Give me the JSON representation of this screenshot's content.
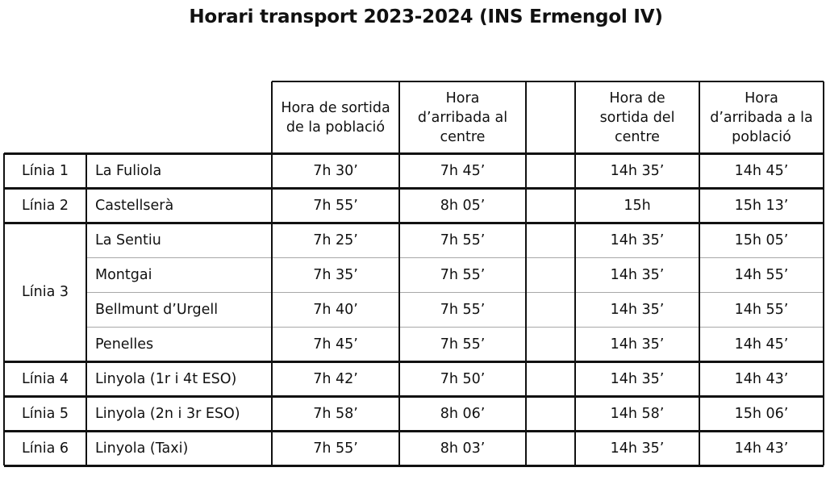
{
  "title": "Horari transport 2023-2024 (INS Ermengol IV)",
  "headers": [
    "Hora de sortida de la població",
    "Hora d’arribada al centre",
    "",
    "Hora de sortida del centre",
    "Hora d’arribada a la població"
  ],
  "groups": [
    {
      "line": "Línia 1",
      "rows": [
        {
          "place": "La Fuliola",
          "out_town": "7h 30’",
          "arr_school": "7h 45’",
          "out_school": "14h 35’",
          "arr_town": "14h 45’"
        }
      ]
    },
    {
      "line": "Línia 2",
      "rows": [
        {
          "place": "Castellserà",
          "out_town": "7h 55’",
          "arr_school": "8h 05’",
          "out_school": "15h",
          "arr_town": "15h 13’"
        }
      ]
    },
    {
      "line": "Línia 3",
      "rows": [
        {
          "place": "La Sentiu",
          "out_town": "7h 25’",
          "arr_school": "7h 55’",
          "out_school": "14h 35’",
          "arr_town": "15h 05’"
        },
        {
          "place": "Montgai",
          "out_town": "7h 35’",
          "arr_school": "7h 55’",
          "out_school": "14h 35’",
          "arr_town": "14h 55’"
        },
        {
          "place": "Bellmunt d’Urgell",
          "out_town": "7h 40’",
          "arr_school": "7h 55’",
          "out_school": "14h 35’",
          "arr_town": "14h 55’"
        },
        {
          "place": "Penelles",
          "out_town": "7h 45’",
          "arr_school": "7h 55’",
          "out_school": "14h 35’",
          "arr_town": "14h 45’"
        }
      ]
    },
    {
      "line": "Línia 4",
      "rows": [
        {
          "place": "Linyola (1r i 4t ESO)",
          "out_town": "7h 42’",
          "arr_school": "7h 50’",
          "out_school": "14h 35’",
          "arr_town": "14h 43’"
        }
      ]
    },
    {
      "line": "Línia 5",
      "rows": [
        {
          "place": "Linyola (2n i 3r ESO)",
          "out_town": "7h 58’",
          "arr_school": "8h 06’",
          "out_school": "14h 58’",
          "arr_town": "15h 06’"
        }
      ]
    },
    {
      "line": "Línia 6",
      "rows": [
        {
          "place": "Linyola (Taxi)",
          "out_town": "7h 55’",
          "arr_school": "8h 03’",
          "out_school": "14h 35’",
          "arr_town": "14h 43’"
        }
      ]
    }
  ]
}
